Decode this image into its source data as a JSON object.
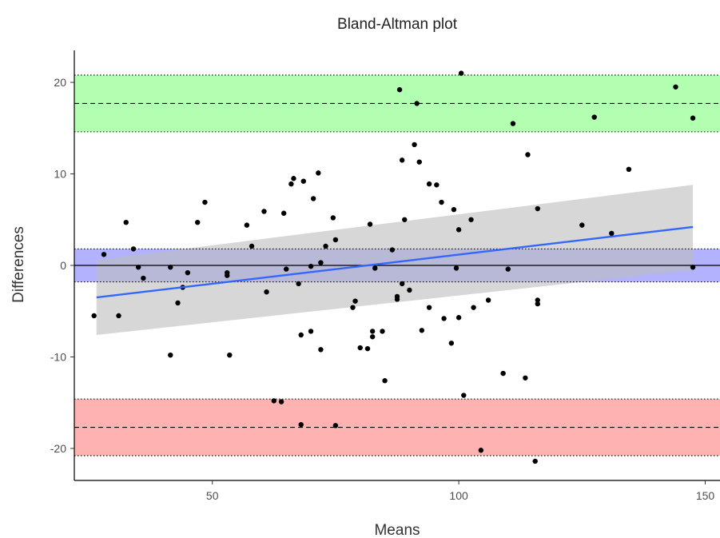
{
  "chart_data": {
    "type": "scatter",
    "title": "Bland-Altman plot",
    "xlabel": "Means",
    "ylabel": "Differences",
    "xlim": [
      22,
      153
    ],
    "ylim": [
      -23.5,
      23.5
    ],
    "x_ticks": [
      50,
      100,
      150
    ],
    "y_ticks": [
      -20,
      -10,
      0,
      10,
      20
    ],
    "x_tick_labels": [
      "50",
      "100",
      "150"
    ],
    "y_tick_labels": [
      "-20",
      "-10",
      "0",
      "10",
      "20"
    ],
    "grid": false,
    "legend": "none",
    "bands": [
      {
        "role": "upper limit of agreement",
        "center": 17.7,
        "lower": 14.6,
        "upper": 20.8,
        "color": "#00ff00"
      },
      {
        "role": "mean difference",
        "center": 0.0,
        "lower": -1.8,
        "upper": 1.8,
        "color": "#0000ff"
      },
      {
        "role": "lower limit of agreement",
        "center": -17.7,
        "lower": -20.8,
        "upper": -14.6,
        "color": "#ff0000"
      }
    ],
    "zero_line": 0,
    "trend": {
      "type": "linear",
      "x": [
        26.5,
        147.5
      ],
      "y": [
        -3.5,
        4.2
      ],
      "ci_lower": [
        -7.6,
        -0.5
      ],
      "ci_upper": [
        0.6,
        8.8
      ],
      "color": "#3366ff",
      "ci_color": "#bdbdbd"
    },
    "points": [
      [
        26,
        -5.5
      ],
      [
        28,
        1.2
      ],
      [
        31,
        -5.5
      ],
      [
        32.5,
        4.7
      ],
      [
        34,
        1.8
      ],
      [
        35,
        -0.2
      ],
      [
        36,
        -1.4
      ],
      [
        41.5,
        -9.8
      ],
      [
        41.5,
        -0.2
      ],
      [
        43,
        -4.1
      ],
      [
        44,
        -2.4
      ],
      [
        45,
        -0.8
      ],
      [
        47,
        4.7
      ],
      [
        48.5,
        6.9
      ],
      [
        53,
        -1.1
      ],
      [
        53,
        -0.8
      ],
      [
        53.5,
        -9.8
      ],
      [
        57,
        4.4
      ],
      [
        58,
        2.1
      ],
      [
        60.5,
        5.9
      ],
      [
        61,
        -2.9
      ],
      [
        62.5,
        -14.8
      ],
      [
        64,
        -14.9
      ],
      [
        64.5,
        5.7
      ],
      [
        65,
        -0.4
      ],
      [
        66,
        8.9
      ],
      [
        66.5,
        9.5
      ],
      [
        67.5,
        -2.0
      ],
      [
        68,
        -7.6
      ],
      [
        68,
        -17.4
      ],
      [
        68.5,
        9.2
      ],
      [
        70,
        -7.2
      ],
      [
        70,
        -0.1
      ],
      [
        70.5,
        7.3
      ],
      [
        71.5,
        10.1
      ],
      [
        72,
        0.3
      ],
      [
        72,
        -9.2
      ],
      [
        73,
        2.1
      ],
      [
        74.5,
        5.2
      ],
      [
        75,
        2.8
      ],
      [
        75,
        -17.5
      ],
      [
        78.5,
        -4.6
      ],
      [
        79,
        -3.9
      ],
      [
        80,
        -9.0
      ],
      [
        81.5,
        -9.1
      ],
      [
        82,
        4.5
      ],
      [
        82.5,
        -7.2
      ],
      [
        82.5,
        -7.8
      ],
      [
        83,
        -0.3
      ],
      [
        84.5,
        -7.2
      ],
      [
        85,
        -12.6
      ],
      [
        86.5,
        1.7
      ],
      [
        87.5,
        -3.7
      ],
      [
        87.5,
        -3.4
      ],
      [
        88,
        19.2
      ],
      [
        88.5,
        -2.0
      ],
      [
        88.5,
        11.5
      ],
      [
        89,
        5.0
      ],
      [
        90,
        -2.7
      ],
      [
        91,
        13.2
      ],
      [
        91.5,
        17.7
      ],
      [
        92,
        11.3
      ],
      [
        92.5,
        -7.1
      ],
      [
        94,
        8.9
      ],
      [
        94,
        -4.6
      ],
      [
        95.5,
        8.8
      ],
      [
        96.5,
        6.9
      ],
      [
        97,
        -5.8
      ],
      [
        98.5,
        -8.5
      ],
      [
        99,
        6.1
      ],
      [
        99.5,
        -0.3
      ],
      [
        100,
        3.9
      ],
      [
        100,
        -5.7
      ],
      [
        100.5,
        21.0
      ],
      [
        101,
        -14.2
      ],
      [
        102.5,
        5.0
      ],
      [
        103,
        -4.6
      ],
      [
        104.5,
        -20.2
      ],
      [
        106,
        -3.8
      ],
      [
        109,
        -11.8
      ],
      [
        110,
        -0.4
      ],
      [
        111,
        15.5
      ],
      [
        113.5,
        -12.3
      ],
      [
        114,
        12.1
      ],
      [
        115.5,
        -21.4
      ],
      [
        116,
        -4.2
      ],
      [
        116,
        -3.8
      ],
      [
        116,
        6.2
      ],
      [
        125,
        4.4
      ],
      [
        127.5,
        16.2
      ],
      [
        131,
        3.5
      ],
      [
        134.5,
        10.5
      ],
      [
        144,
        19.5
      ],
      [
        147.5,
        16.1
      ],
      [
        147.5,
        -0.2
      ]
    ],
    "point_color": "#000000"
  }
}
